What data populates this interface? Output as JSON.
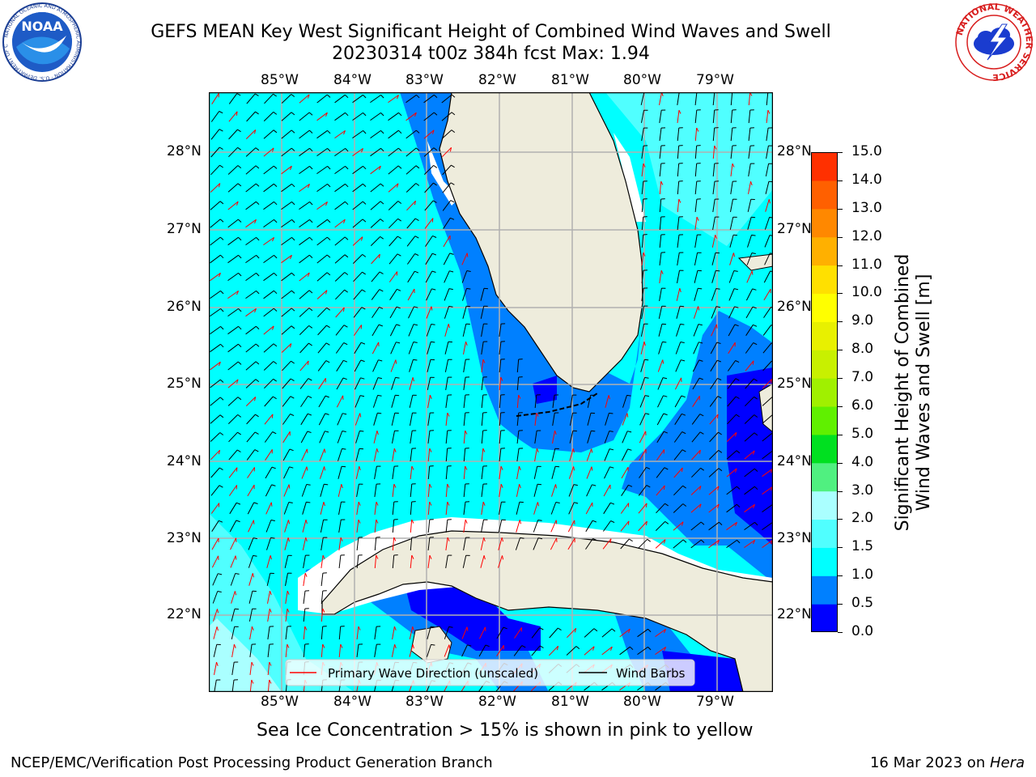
{
  "header": {
    "title_line1": "GEFS MEAN Key West Significant Height of Combined Wind Waves and Swell",
    "title_line2": "20230314 t00z 384h fcst   Max: 1.94",
    "noaa_text": "NOAA",
    "noaa_ring_text": "NATIONAL OCEANIC AND ATMOSPHERIC ADMINISTRATION · U.S. DEPARTMENT OF COMMERCE",
    "nws_ring_text": "NATIONAL WEATHER SERVICE"
  },
  "map": {
    "lon_labels": [
      "85°W",
      "84°W",
      "83°W",
      "82°W",
      "81°W",
      "80°W",
      "79°W"
    ],
    "lat_labels": [
      "28°N",
      "27°N",
      "26°N",
      "25°N",
      "24°N",
      "23°N",
      "22°N"
    ],
    "legend": {
      "wave_direction": "Primary Wave Direction (unscaled)",
      "wind_barbs": "Wind Barbs"
    },
    "colors": {
      "land": "#eeecdc",
      "water_base": "#00ffff",
      "wave_arrow": "#ff0000",
      "wind_barb": "#000000"
    }
  },
  "colorbar": {
    "label_line1": "Significant Height of Combined",
    "label_line2": "Wind Waves and Swell [m]",
    "ticks": [
      "15.0",
      "14.0",
      "13.0",
      "12.0",
      "11.0",
      "10.0",
      "9.0",
      "8.0",
      "7.0",
      "6.0",
      "5.0",
      "4.0",
      "3.0",
      "2.0",
      "1.5",
      "1.0",
      "0.5",
      "0.0"
    ],
    "colors_bottom_to_top": [
      "#0000ff",
      "#0080ff",
      "#00ffff",
      "#50ffff",
      "#aaffff",
      "#50f080",
      "#00e020",
      "#60f000",
      "#a0f000",
      "#c8f000",
      "#e8f000",
      "#ffff00",
      "#ffe000",
      "#ffb000",
      "#ff8800",
      "#ff6000",
      "#ff3000"
    ]
  },
  "note": "Sea Ice Concentration > 15% is shown in pink to yellow",
  "footer": {
    "left": "NCEP/EMC/Verification Post Processing Product Generation Branch",
    "right_date": "16 Mar 2023 on ",
    "right_host": "Hera"
  }
}
